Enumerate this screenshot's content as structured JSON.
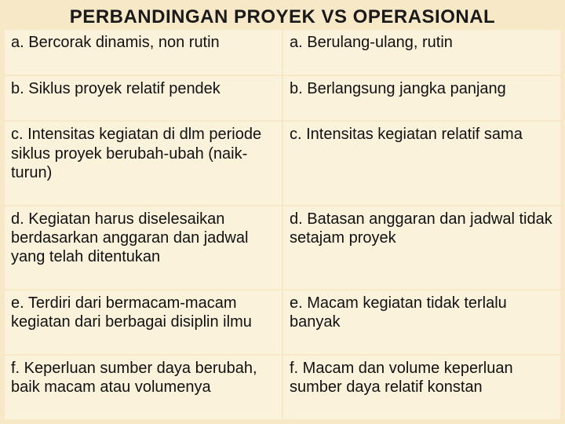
{
  "title": "PERBANDINGAN PROYEK VS OPERASIONAL",
  "title_fontsize": 24,
  "cell_fontsize": 20,
  "background_color": "#f7e8c8",
  "cell_bg_color": "#fbf2dc",
  "title_color": "#1a1a1a",
  "cell_text_color": "#111111",
  "rows": [
    {
      "left": "a. Bercorak dinamis, non rutin",
      "right": "a. Berulang-ulang, rutin"
    },
    {
      "left": "b. Siklus proyek relatif pendek",
      "right": "b. Berlangsung jangka panjang"
    },
    {
      "left": "c. Intensitas kegiatan di dlm periode siklus proyek berubah-ubah (naik-turun)",
      "right": "c. Intensitas kegiatan relatif sama"
    },
    {
      "left": "d. Kegiatan harus diselesaikan berdasarkan anggaran dan jadwal yang telah ditentukan",
      "right": "d. Batasan anggaran dan jadwal tidak setajam proyek"
    },
    {
      "left": "e. Terdiri dari bermacam-macam kegiatan dari berbagai disiplin ilmu",
      "right": "e. Macam kegiatan tidak terlalu banyak"
    },
    {
      "left": "f. Keperluan sumber daya berubah, baik macam atau volumenya",
      "right": "f. Macam dan volume keperluan sumber daya relatif konstan"
    }
  ]
}
